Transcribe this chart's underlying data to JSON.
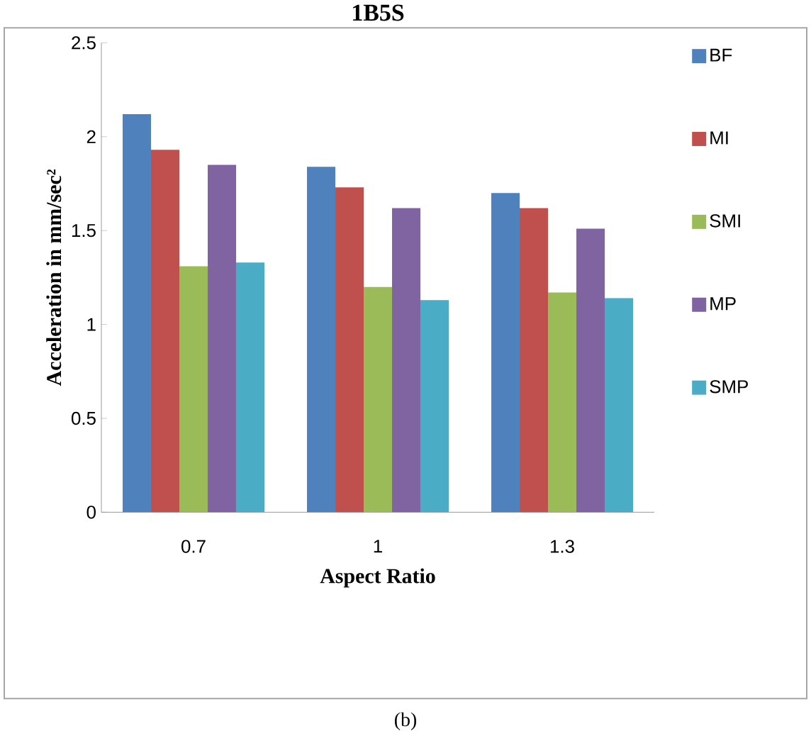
{
  "chart_data": {
    "type": "bar",
    "title": "1B5S",
    "xlabel": "Aspect Ratio",
    "ylabel": "Acceleration in mm/sec²",
    "categories": [
      "0.7",
      "1",
      "1.3"
    ],
    "series": [
      {
        "name": "BF",
        "color": "#4f81bd",
        "values": [
          2.12,
          1.84,
          1.7
        ]
      },
      {
        "name": "MI",
        "color": "#c0504d",
        "values": [
          1.93,
          1.73,
          1.62
        ]
      },
      {
        "name": "SMI",
        "color": "#9bbb59",
        "values": [
          1.31,
          1.2,
          1.17
        ]
      },
      {
        "name": "MP",
        "color": "#8064a2",
        "values": [
          1.85,
          1.62,
          1.51
        ]
      },
      {
        "name": "SMP",
        "color": "#4bacc6",
        "values": [
          1.33,
          1.13,
          1.14
        ]
      }
    ],
    "ylim": [
      0,
      2.5
    ],
    "yticks": [
      0,
      0.5,
      1,
      1.5,
      2,
      2.5
    ],
    "legend": "right",
    "annotations": [
      "(b)"
    ]
  }
}
